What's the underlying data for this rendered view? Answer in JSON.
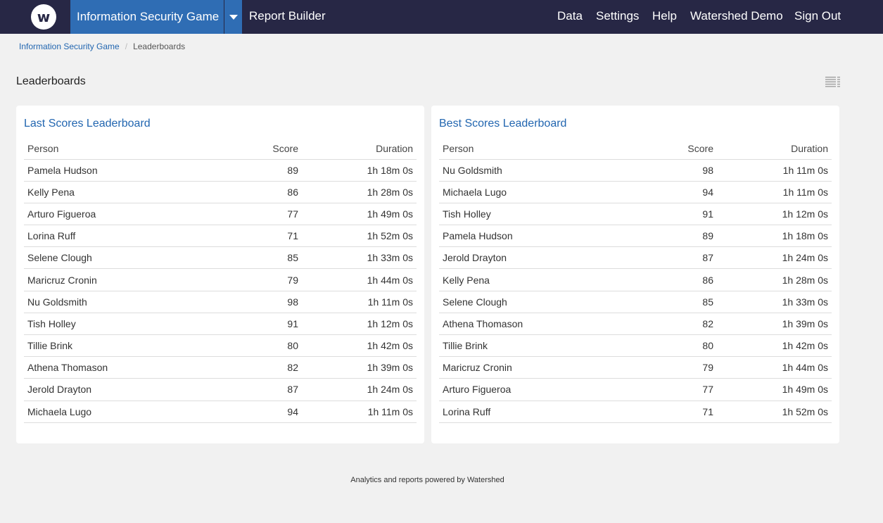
{
  "nav": {
    "logo_letter": "w",
    "active_item": "Information Security Game",
    "items_left": [
      "Report Builder"
    ],
    "items_right": [
      "Data",
      "Settings",
      "Help",
      "Watershed Demo",
      "Sign Out"
    ]
  },
  "breadcrumb": {
    "parent": "Information Security Game",
    "current": "Leaderboards"
  },
  "page_title": "Leaderboards",
  "leaderboards": {
    "last": {
      "title": "Last Scores Leaderboard",
      "headers": [
        "Person",
        "Score",
        "Duration"
      ],
      "rows": [
        [
          "Pamela Hudson",
          "89",
          "1h 18m 0s"
        ],
        [
          "Kelly Pena",
          "86",
          "1h 28m 0s"
        ],
        [
          "Arturo Figueroa",
          "77",
          "1h 49m 0s"
        ],
        [
          "Lorina Ruff",
          "71",
          "1h 52m 0s"
        ],
        [
          "Selene Clough",
          "85",
          "1h 33m 0s"
        ],
        [
          "Maricruz Cronin",
          "79",
          "1h 44m 0s"
        ],
        [
          "Nu Goldsmith",
          "98",
          "1h 11m 0s"
        ],
        [
          "Tish Holley",
          "91",
          "1h 12m 0s"
        ],
        [
          "Tillie Brink",
          "80",
          "1h 42m 0s"
        ],
        [
          "Athena Thomason",
          "82",
          "1h 39m 0s"
        ],
        [
          "Jerold Drayton",
          "87",
          "1h 24m 0s"
        ],
        [
          "Michaela Lugo",
          "94",
          "1h 11m 0s"
        ]
      ]
    },
    "best": {
      "title": "Best Scores Leaderboard",
      "headers": [
        "Person",
        "Score",
        "Duration"
      ],
      "rows": [
        [
          "Nu Goldsmith",
          "98",
          "1h 11m 0s"
        ],
        [
          "Michaela Lugo",
          "94",
          "1h 11m 0s"
        ],
        [
          "Tish Holley",
          "91",
          "1h 12m 0s"
        ],
        [
          "Pamela Hudson",
          "89",
          "1h 18m 0s"
        ],
        [
          "Jerold Drayton",
          "87",
          "1h 24m 0s"
        ],
        [
          "Kelly Pena",
          "86",
          "1h 28m 0s"
        ],
        [
          "Selene Clough",
          "85",
          "1h 33m 0s"
        ],
        [
          "Athena Thomason",
          "82",
          "1h 39m 0s"
        ],
        [
          "Tillie Brink",
          "80",
          "1h 42m 0s"
        ],
        [
          "Maricruz Cronin",
          "79",
          "1h 44m 0s"
        ],
        [
          "Arturo Figueroa",
          "77",
          "1h 49m 0s"
        ],
        [
          "Lorina Ruff",
          "71",
          "1h 52m 0s"
        ]
      ]
    }
  },
  "footer": "Analytics and reports powered by Watershed",
  "icons": {
    "logo": "watershed-logo-icon",
    "dropdown": "caret-down-icon",
    "view_toggle": "list-view-icon"
  },
  "colors": {
    "topbar": "#272745",
    "accent": "#2f6db4",
    "link": "#2266b0",
    "background": "#f1f1f1"
  }
}
